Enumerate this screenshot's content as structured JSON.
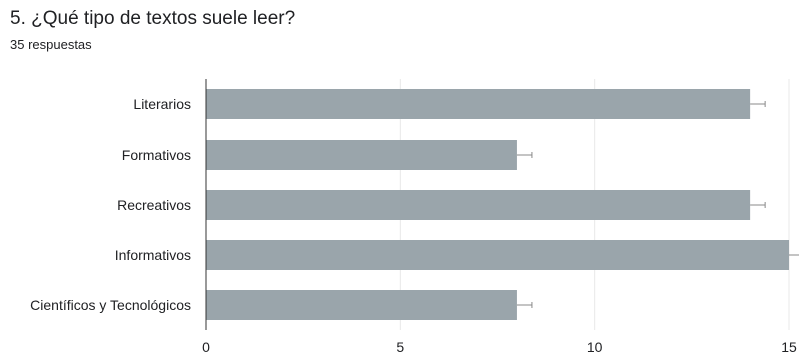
{
  "header": {
    "question": "5. ¿Qué tipo de textos suele leer?",
    "responses": "35 respuestas"
  },
  "chart_data": {
    "type": "bar",
    "orientation": "horizontal",
    "categories": [
      "Literarios",
      "Formativos",
      "Recreativos",
      "Informativos",
      "Científicos y Tecnológicos"
    ],
    "values": [
      14,
      8,
      14,
      15,
      8
    ],
    "xlim": [
      0,
      15
    ],
    "xticks": [
      0,
      5,
      10,
      15
    ],
    "grid": true,
    "bar_color": "#9aa5ab",
    "grid_color": "#e8e8e8",
    "axis_color": "#333333"
  }
}
